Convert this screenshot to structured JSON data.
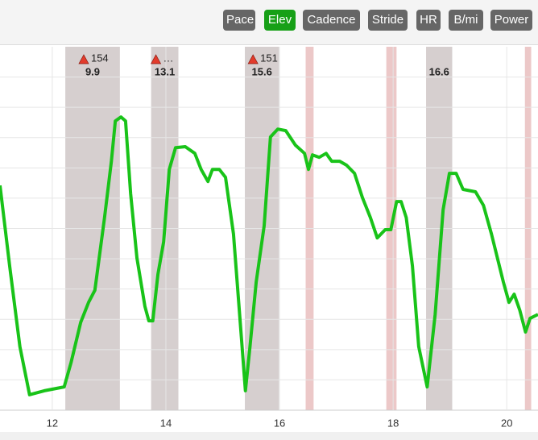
{
  "toolbar": {
    "buttons": [
      "Pace",
      "Elev",
      "Cadence",
      "Stride",
      "HR",
      "B/mi",
      "Power"
    ],
    "active": 1
  },
  "chart_data": {
    "type": "line",
    "color": "#19c319",
    "x": [
      11.08,
      11.25,
      11.43,
      11.6,
      11.86,
      12.21,
      12.33,
      12.5,
      12.64,
      12.75,
      12.92,
      13.04,
      13.11,
      13.21,
      13.29,
      13.38,
      13.49,
      13.63,
      13.7,
      13.77,
      13.86,
      13.96,
      14.06,
      14.17,
      14.34,
      14.51,
      14.62,
      14.74,
      14.82,
      14.94,
      15.05,
      15.19,
      15.33,
      15.4,
      15.48,
      15.59,
      15.73,
      15.84,
      15.97,
      16.11,
      16.28,
      16.44,
      16.51,
      16.58,
      16.7,
      16.82,
      16.92,
      17.06,
      17.18,
      17.32,
      17.46,
      17.6,
      17.72,
      17.86,
      17.96,
      18.06,
      18.14,
      18.23,
      18.34,
      18.45,
      18.6,
      18.74,
      18.88,
      18.99,
      19.11,
      19.23,
      19.45,
      19.59,
      19.73,
      19.94,
      20.04,
      20.13,
      20.23,
      20.33,
      20.41,
      20.55
    ],
    "values": [
      7.42,
      4.76,
      2.1,
      0.51,
      0.64,
      0.77,
      1.57,
      2.9,
      3.56,
      3.96,
      6.36,
      8.22,
      9.55,
      9.68,
      9.55,
      7.15,
      5.03,
      3.43,
      2.95,
      2.95,
      4.49,
      5.56,
      7.95,
      8.67,
      8.7,
      8.48,
      7.95,
      7.55,
      7.95,
      7.95,
      7.69,
      5.82,
      2.37,
      0.64,
      2.1,
      4.23,
      6.09,
      9.02,
      9.28,
      9.23,
      8.75,
      8.48,
      7.95,
      8.43,
      8.35,
      8.48,
      8.22,
      8.22,
      8.09,
      7.82,
      7.02,
      6.36,
      5.69,
      5.96,
      5.96,
      6.89,
      6.89,
      6.36,
      4.76,
      2.1,
      0.77,
      3.16,
      6.62,
      7.82,
      7.82,
      7.29,
      7.21,
      6.76,
      5.82,
      4.23,
      3.56,
      3.83,
      3.3,
      2.58,
      3.03,
      3.16
    ],
    "xlim": [
      11.08,
      20.55
    ],
    "xticks": [
      12,
      14,
      16,
      18,
      20
    ],
    "ylim": [
      0,
      12
    ],
    "ygrid": [
      1,
      2,
      3,
      4,
      5,
      6,
      7,
      8,
      9,
      10,
      11
    ],
    "shaded_ranges": [
      {
        "range": [
          12.23,
          13.19
        ],
        "hr": "154",
        "mile": "9.9"
      },
      {
        "range": [
          13.74,
          14.22
        ],
        "hr": "…",
        "mile": "13.1"
      },
      {
        "range": [
          15.39,
          15.99
        ],
        "hr": "151",
        "mile": "15.6"
      },
      {
        "range": [
          18.58,
          19.04
        ],
        "mile": "16.6"
      }
    ],
    "shaded_color": "#d6cfcf",
    "marker_ranges": [
      [
        16.46,
        16.6
      ],
      [
        17.88,
        18.06
      ],
      [
        20.32,
        20.43
      ]
    ],
    "marker_color": "#ecc8c8"
  }
}
